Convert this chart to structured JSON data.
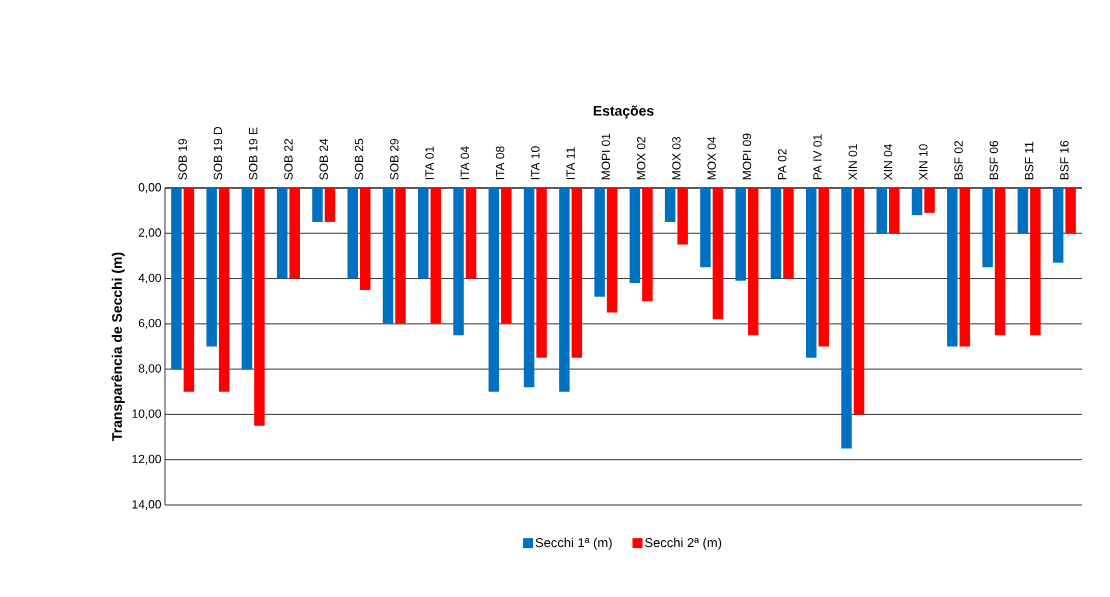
{
  "chart_data": {
    "type": "bar",
    "title": "Estações",
    "ylabel": "Transparência de Secchi (m)",
    "categories": [
      "SOB 19",
      "SOB 19 D",
      "SOB 19 E",
      "SOB 22",
      "SOB 24",
      "SOB 25",
      "SOB 29",
      "ITA 01",
      "ITA 04",
      "ITA 08",
      "ITA 10",
      "ITA 11",
      "MOPI 01",
      "MOX 02",
      "MOX 03",
      "MOX 04",
      "MOPI 09",
      "PA 02",
      "PA IV 01",
      "XIN 01",
      "XIN 04",
      "XIN 10",
      "BSF 02",
      "BSF 06",
      "BSF 11",
      "BSF 16"
    ],
    "series": [
      {
        "name": "Secchi 1ª (m)",
        "color": "#0070c0",
        "values": [
          8,
          7,
          8,
          4,
          1.5,
          4,
          6,
          4,
          6.5,
          9,
          8.8,
          9,
          4.8,
          4.2,
          1.5,
          3.5,
          4.1,
          4,
          7.5,
          11.5,
          2,
          1.2,
          7,
          3.5,
          2,
          3.3
        ]
      },
      {
        "name": "Secchi 2ª (m)",
        "color": "#ff0000",
        "values": [
          9,
          9,
          10.5,
          4,
          1.5,
          4.5,
          6,
          6,
          4,
          6,
          7.5,
          7.5,
          5.5,
          5,
          2.5,
          5.8,
          6.5,
          4,
          7,
          10,
          2,
          1.1,
          7,
          6.5,
          6.5,
          2
        ]
      }
    ],
    "ylim": [
      14,
      0
    ],
    "yticks": [
      {
        "value": 0,
        "label": "0,00"
      },
      {
        "value": 2,
        "label": "2,00"
      },
      {
        "value": 4,
        "label": "4,00"
      },
      {
        "value": 6,
        "label": "6,00"
      },
      {
        "value": 8,
        "label": "8,00"
      },
      {
        "value": 10,
        "label": "10,00"
      },
      {
        "value": 12,
        "label": "12,00"
      },
      {
        "value": 14,
        "label": "14,00"
      }
    ],
    "grid": "y",
    "legend": "bottom"
  }
}
